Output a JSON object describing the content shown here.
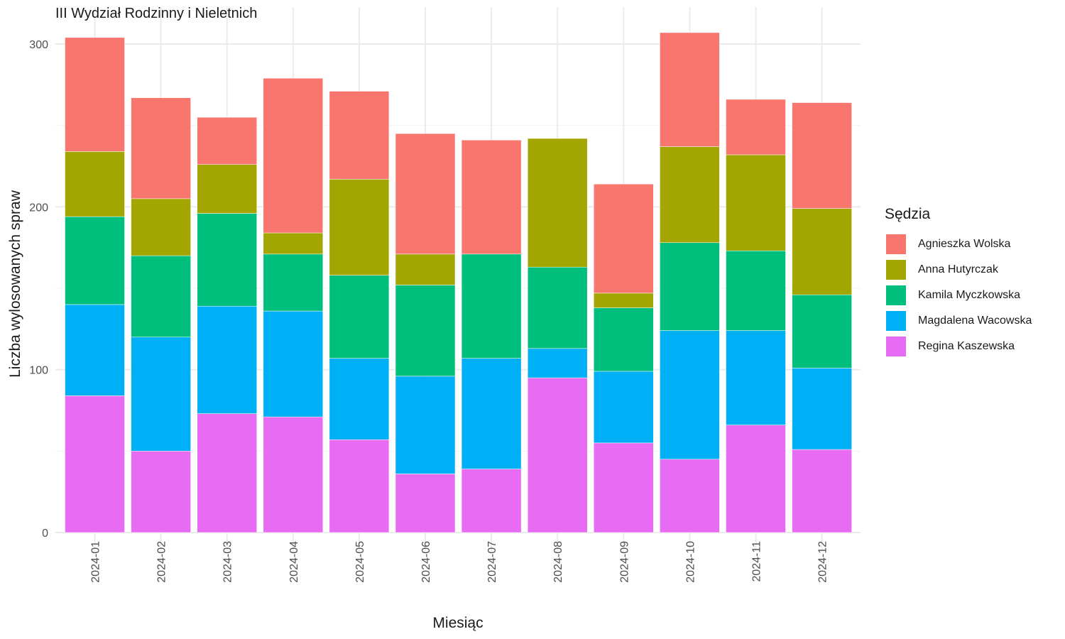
{
  "chart_data": {
    "type": "bar",
    "stacked": true,
    "title": "III Wydział Rodzinny i Nieletnich",
    "xlabel": "Miesiąc",
    "ylabel": "Liczba wylosowanych spraw",
    "ylim": [
      0,
      310
    ],
    "yticks": [
      0,
      100,
      200,
      300
    ],
    "grid": true,
    "legend_title": "Sędzia",
    "legend_position": "right",
    "categories": [
      "2024-01",
      "2024-02",
      "2024-03",
      "2024-04",
      "2024-05",
      "2024-06",
      "2024-07",
      "2024-08",
      "2024-09",
      "2024-10",
      "2024-11",
      "2024-12"
    ],
    "series": [
      {
        "name": "Regina Kaszewska",
        "color": "#E76BF3",
        "values": [
          84,
          50,
          73,
          71,
          57,
          36,
          39,
          95,
          55,
          45,
          66,
          51
        ]
      },
      {
        "name": "Magdalena Wacowska",
        "color": "#00B0F6",
        "values": [
          56,
          70,
          66,
          65,
          50,
          60,
          68,
          18,
          44,
          79,
          58,
          50
        ]
      },
      {
        "name": "Kamila Myczkowska",
        "color": "#00BF7D",
        "values": [
          54,
          50,
          57,
          35,
          51,
          56,
          64,
          50,
          39,
          54,
          49,
          45
        ]
      },
      {
        "name": "Anna Hutyrczak",
        "color": "#A3A500",
        "values": [
          40,
          35,
          30,
          13,
          59,
          19,
          0,
          79,
          9,
          59,
          59,
          53
        ]
      },
      {
        "name": "Agnieszka Wolska",
        "color": "#F8766D",
        "values": [
          70,
          62,
          29,
          95,
          54,
          74,
          70,
          0,
          67,
          70,
          34,
          65
        ]
      }
    ],
    "legend_order": [
      "Agnieszka Wolska",
      "Anna Hutyrczak",
      "Kamila Myczkowska",
      "Magdalena Wacowska",
      "Regina Kaszewska"
    ]
  }
}
